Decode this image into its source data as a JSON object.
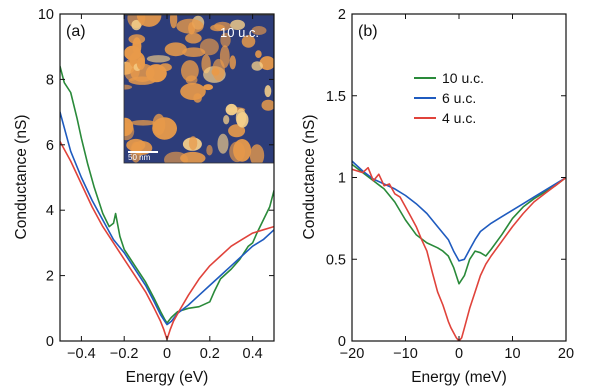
{
  "chart_data": [
    {
      "type": "line",
      "panel_label": "(a)",
      "xlabel": "Energy (eV)",
      "ylabel": "Conductance (nS)",
      "xlim": [
        -0.5,
        0.5
      ],
      "ylim": [
        0,
        10
      ],
      "xticks": [
        -0.4,
        -0.2,
        0,
        0.2,
        0.4
      ],
      "xtick_labels": [
        "−0.4",
        "−0.2",
        "0",
        "0.2",
        "0.4"
      ],
      "yticks": [
        0,
        2,
        4,
        6,
        8,
        10
      ],
      "ytick_labels": [
        "0",
        "2",
        "4",
        "6",
        "8",
        "10"
      ],
      "grid": false,
      "inset": {
        "label": "10 u.c.",
        "scalebar_label": "50 nm",
        "colors": {
          "background": "#2d3d7a",
          "islands": "#e89a4a",
          "highlight": "#f6d08a"
        }
      },
      "series": [
        {
          "name": "10 u.c.",
          "color": "#2a8a3a",
          "x": [
            -0.5,
            -0.48,
            -0.45,
            -0.42,
            -0.4,
            -0.37,
            -0.34,
            -0.3,
            -0.27,
            -0.25,
            -0.24,
            -0.22,
            -0.2,
            -0.15,
            -0.1,
            -0.06,
            -0.03,
            -0.01,
            0,
            0.02,
            0.05,
            0.1,
            0.15,
            0.2,
            0.22,
            0.25,
            0.3,
            0.34,
            0.38,
            0.4,
            0.42,
            0.45,
            0.48,
            0.5
          ],
          "y": [
            8.4,
            7.9,
            7.6,
            6.8,
            6.2,
            5.4,
            4.7,
            3.9,
            3.5,
            3.6,
            3.9,
            3.2,
            2.8,
            2.3,
            1.8,
            1.3,
            0.9,
            0.65,
            0.55,
            0.72,
            0.9,
            1.0,
            1.05,
            1.2,
            1.5,
            1.9,
            2.2,
            2.5,
            2.9,
            3.0,
            3.3,
            3.7,
            4.1,
            4.6
          ]
        },
        {
          "name": "6 u.c.",
          "color": "#1f5bbf",
          "x": [
            -0.5,
            -0.45,
            -0.4,
            -0.35,
            -0.3,
            -0.25,
            -0.2,
            -0.15,
            -0.1,
            -0.06,
            -0.03,
            -0.01,
            0,
            0.02,
            0.05,
            0.1,
            0.15,
            0.2,
            0.25,
            0.3,
            0.35,
            0.4,
            0.45,
            0.5
          ],
          "y": [
            7.0,
            5.8,
            5.0,
            4.3,
            3.7,
            3.1,
            2.7,
            2.2,
            1.7,
            1.2,
            0.8,
            0.6,
            0.5,
            0.6,
            0.85,
            1.1,
            1.4,
            1.7,
            2.0,
            2.3,
            2.6,
            2.9,
            3.1,
            3.4
          ]
        },
        {
          "name": "4 u.c.",
          "color": "#e0433b",
          "x": [
            -0.5,
            -0.45,
            -0.4,
            -0.35,
            -0.3,
            -0.25,
            -0.2,
            -0.15,
            -0.1,
            -0.06,
            -0.03,
            -0.015,
            0,
            0.015,
            0.03,
            0.06,
            0.1,
            0.15,
            0.2,
            0.25,
            0.3,
            0.35,
            0.4,
            0.45,
            0.5
          ],
          "y": [
            6.1,
            5.5,
            4.8,
            4.1,
            3.5,
            3.0,
            2.5,
            2.0,
            1.5,
            1.0,
            0.6,
            0.35,
            0.05,
            0.35,
            0.6,
            0.95,
            1.4,
            1.9,
            2.3,
            2.6,
            2.9,
            3.1,
            3.3,
            3.4,
            3.5
          ]
        }
      ]
    },
    {
      "type": "line",
      "panel_label": "(b)",
      "xlabel": "Energy (meV)",
      "ylabel": "Conductance (nS)",
      "xlim": [
        -20,
        20
      ],
      "ylim": [
        0,
        2
      ],
      "xticks": [
        -20,
        -10,
        0,
        10,
        20
      ],
      "xtick_labels": [
        "−20",
        "−10",
        "0",
        "10",
        "20"
      ],
      "yticks": [
        0,
        0.5,
        1,
        1.5,
        2
      ],
      "ytick_labels": [
        "0",
        "0.5",
        "1",
        "1.5",
        "2"
      ],
      "grid": false,
      "legend": {
        "placement": "top-center"
      },
      "series": [
        {
          "name": "10 u.c.",
          "color": "#2a8a3a",
          "x": [
            -20,
            -18,
            -16,
            -14,
            -12,
            -10,
            -8,
            -6,
            -4,
            -3,
            -2,
            -1,
            0,
            1,
            2,
            3,
            4,
            5,
            6,
            8,
            10,
            12,
            14,
            16,
            18,
            20
          ],
          "y": [
            1.08,
            1.03,
            0.98,
            0.93,
            0.85,
            0.74,
            0.65,
            0.6,
            0.57,
            0.55,
            0.52,
            0.45,
            0.35,
            0.4,
            0.5,
            0.55,
            0.54,
            0.52,
            0.56,
            0.65,
            0.75,
            0.82,
            0.87,
            0.91,
            0.95,
            1.0
          ]
        },
        {
          "name": "6 u.c.",
          "color": "#1f5bbf",
          "x": [
            -20,
            -18,
            -16,
            -14,
            -12,
            -10,
            -8,
            -6,
            -4,
            -2,
            -1,
            0,
            1,
            2,
            3,
            4,
            6,
            8,
            10,
            12,
            14,
            16,
            18,
            20
          ],
          "y": [
            1.1,
            1.04,
            0.99,
            0.96,
            0.93,
            0.89,
            0.84,
            0.78,
            0.7,
            0.62,
            0.55,
            0.49,
            0.5,
            0.56,
            0.62,
            0.67,
            0.72,
            0.76,
            0.8,
            0.84,
            0.88,
            0.92,
            0.96,
            1.0
          ]
        },
        {
          "name": "4 u.c.",
          "color": "#e0433b",
          "x": [
            -20,
            -18,
            -17,
            -16,
            -15,
            -14,
            -13,
            -12,
            -11,
            -10,
            -9,
            -8,
            -7,
            -6,
            -5,
            -4,
            -3,
            -2,
            -1.5,
            -1,
            -0.5,
            0,
            0.5,
            1,
            2,
            3,
            4,
            5,
            6,
            8,
            10,
            12,
            14,
            16,
            18,
            20
          ],
          "y": [
            1.05,
            1.03,
            1.06,
            0.98,
            1.02,
            0.95,
            0.96,
            0.9,
            0.88,
            0.82,
            0.76,
            0.7,
            0.62,
            0.55,
            0.42,
            0.3,
            0.22,
            0.12,
            0.08,
            0.05,
            0.02,
            0.0,
            0.02,
            0.08,
            0.2,
            0.3,
            0.4,
            0.47,
            0.52,
            0.61,
            0.7,
            0.78,
            0.85,
            0.9,
            0.95,
            1.0
          ]
        }
      ]
    }
  ]
}
